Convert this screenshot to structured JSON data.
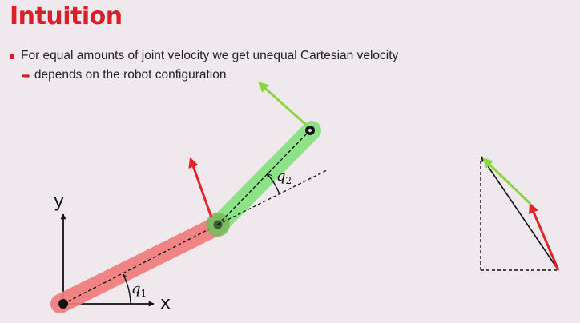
{
  "slide": {
    "title": "Intuition",
    "bullet_text": "For equal amounts of joint velocity we get unequal Cartesian velocity",
    "sub_arrow_glyph": "➥",
    "sub_text": "depends on the robot configuration"
  },
  "diagram": {
    "axis_x_label": "x",
    "axis_y_label": "y",
    "joint1_label": {
      "symbol": "q",
      "subscript": "1"
    },
    "joint2_label": {
      "symbol": "q",
      "subscript": "2"
    },
    "link1_color": "#f07a7a",
    "link2_color": "#7fe07a",
    "arrow_red_color": "#e0262b",
    "arrow_green_color": "#8bd63c"
  }
}
